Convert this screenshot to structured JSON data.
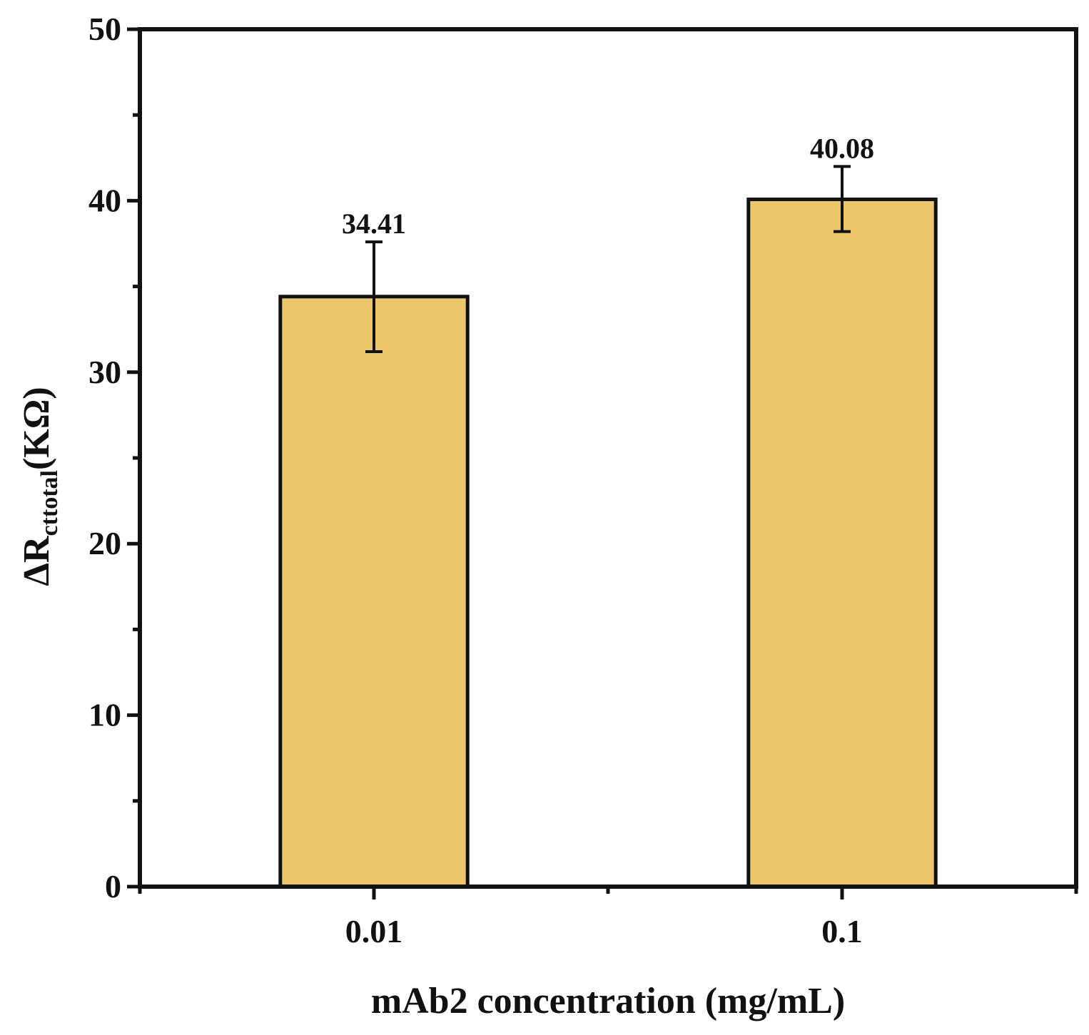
{
  "chart_data": {
    "type": "bar",
    "categories": [
      "0.01",
      "0.1"
    ],
    "values": [
      34.41,
      40.08
    ],
    "error_upper": [
      37.6,
      42.0
    ],
    "error_lower": [
      31.2,
      38.2
    ],
    "data_labels": [
      "34.41",
      "40.08"
    ],
    "xlabel": "mAb2 concentration (mg/mL)",
    "ylabel_prefix": "ΔR",
    "ylabel_sub": "cttotal",
    "ylabel_suffix": "(KΩ)",
    "ylim": [
      0,
      50
    ],
    "yticks": [
      0,
      10,
      20,
      30,
      40,
      50
    ],
    "ytick_labels": [
      "0",
      "10",
      "20",
      "30",
      "40",
      "50"
    ],
    "bar_color": "#ECC66A",
    "grid": false
  }
}
